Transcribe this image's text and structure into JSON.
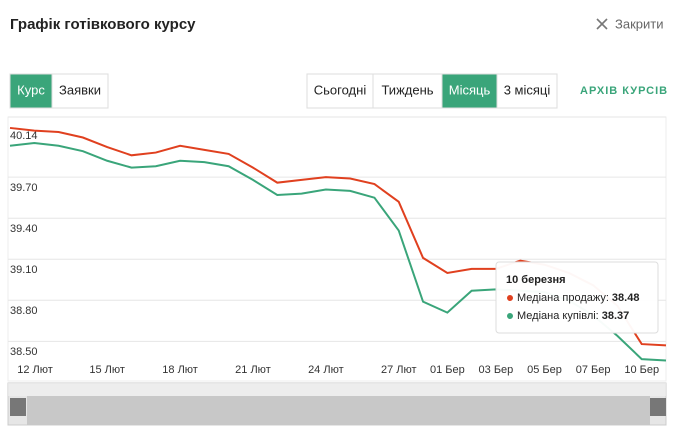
{
  "header": {
    "title": "Графік готівкового курсу",
    "close": "Закрити"
  },
  "tabs": {
    "items": [
      "Курс",
      "Заявки"
    ],
    "active": 0
  },
  "periods": {
    "items": [
      "Сьогодні",
      "Тиждень",
      "Місяць",
      "3 місяці"
    ],
    "active": 2
  },
  "archive": "АРХІВ КУРСІВ",
  "chart_data": {
    "type": "line",
    "categories": [
      null,
      "12 Лют",
      null,
      null,
      "15 Лют",
      null,
      null,
      "18 Лют",
      null,
      null,
      "21 Лют",
      null,
      null,
      "24 Лют",
      null,
      null,
      "27 Лют",
      null,
      "01 Бер",
      null,
      "03 Бер",
      null,
      "05 Бер",
      null,
      "07 Бер",
      null,
      "10 Бер",
      null
    ],
    "series": [
      {
        "color": "#e0401f",
        "values": [
          40.06,
          40.04,
          40.03,
          39.99,
          39.92,
          39.86,
          39.88,
          39.93,
          39.9,
          39.87,
          39.77,
          39.66,
          39.68,
          39.7,
          39.69,
          39.65,
          39.52,
          39.11,
          39.0,
          39.03,
          39.03,
          39.09,
          39.06,
          39.0,
          38.91,
          38.76,
          38.48,
          38.47
        ]
      },
      {
        "color": "#3aa57a",
        "values": [
          39.93,
          39.95,
          39.93,
          39.89,
          39.82,
          39.77,
          39.78,
          39.82,
          39.81,
          39.78,
          39.68,
          39.57,
          39.58,
          39.61,
          39.6,
          39.55,
          39.31,
          38.79,
          38.71,
          38.87,
          38.88,
          38.87,
          38.86,
          38.8,
          38.69,
          38.54,
          38.37,
          38.36
        ]
      }
    ],
    "ylim": [
      38.21,
      40.14
    ],
    "yticks": [
      {
        "value": 38.5,
        "label": "38.50"
      },
      {
        "value": 38.8,
        "label": "38.80"
      },
      {
        "value": 39.1,
        "label": "39.10"
      },
      {
        "value": 39.4,
        "label": "39.40"
      },
      {
        "value": 39.7,
        "label": "39.70"
      },
      40.14
    ],
    "grid": true,
    "tooltip": {
      "title": "10 березня",
      "rows": [
        {
          "label": "Медіана продажу:",
          "value": 38.48
        },
        {
          "label": "Медіана купівлі:",
          "value": 38.37
        }
      ]
    }
  }
}
